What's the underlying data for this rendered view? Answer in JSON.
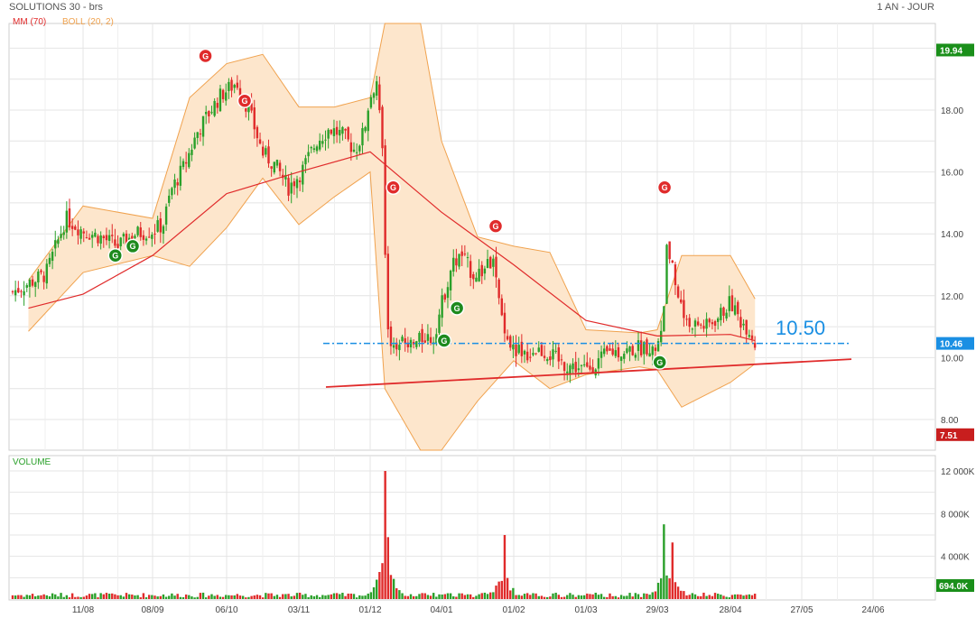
{
  "header": {
    "title": "SOLUTIONS 30 - brs",
    "period": "1 AN - JOUR",
    "ma_legend": "MM (70)",
    "boll_legend": "BOLL (20, 2)",
    "volume_label": "VOLUME",
    "annotation": "10.50"
  },
  "colors": {
    "up": "#2aa02a",
    "down": "#e02b2b",
    "ma": "#e02b2b",
    "boll_fill": "#fde6cc",
    "boll_line": "#f0a24e",
    "support_line": "#1a8fe3",
    "trend_line": "#e02b2b",
    "grid": "#e4e4e4"
  },
  "chart_data": [
    {
      "type": "candlestick",
      "title": "SOLUTIONS 30 - brs",
      "y_ticks": [
        "8.00",
        "10.00",
        "12.00",
        "14.00",
        "16.00",
        "18.00"
      ],
      "ylim": [
        6.7,
        20.7
      ],
      "x_ticks": [
        "11/08",
        "08/09",
        "06/10",
        "03/11",
        "01/12",
        "04/01",
        "01/02",
        "01/03",
        "29/03",
        "28/04",
        "27/05",
        "24/06"
      ],
      "price_badges": [
        {
          "label": "19.94",
          "value": 19.94,
          "color": "#1a8f1a"
        },
        {
          "label": "10.46",
          "value": 10.46,
          "color": "#1a8fe3"
        },
        {
          "label": "7.51",
          "value": 7.51,
          "color": "#c81e1e"
        }
      ],
      "horizontal_level": {
        "value": 10.46,
        "label": "10.50"
      },
      "trend_line": {
        "from": [
          "01/12",
          9.05
        ],
        "to": [
          "24/06",
          9.95
        ]
      },
      "signals": [
        {
          "date": "28/09",
          "value": 19.75,
          "kind": "sell",
          "label": "G"
        },
        {
          "date": "13/10",
          "value": 18.3,
          "kind": "sell",
          "label": "G"
        },
        {
          "date": "12/12",
          "value": 15.5,
          "kind": "sell",
          "label": "G"
        },
        {
          "date": "25/01",
          "value": 14.25,
          "kind": "sell",
          "label": "G"
        },
        {
          "date": "01/04",
          "value": 15.5,
          "kind": "sell",
          "label": "G"
        },
        {
          "date": "24/08",
          "value": 13.3,
          "kind": "buy",
          "label": "G"
        },
        {
          "date": "31/08",
          "value": 13.6,
          "kind": "buy",
          "label": "G"
        },
        {
          "date": "10/01",
          "value": 11.6,
          "kind": "buy",
          "label": "G"
        },
        {
          "date": "05/01",
          "value": 10.55,
          "kind": "buy",
          "label": "G"
        },
        {
          "date": "30/03",
          "value": 9.85,
          "kind": "buy",
          "label": "G"
        }
      ],
      "ma_points": [
        [
          "20/07",
          11.6
        ],
        [
          "11/08",
          12.05
        ],
        [
          "08/09",
          13.3
        ],
        [
          "06/10",
          15.3
        ],
        [
          "03/11",
          16.0
        ],
        [
          "01/12",
          16.65
        ],
        [
          "04/01",
          14.7
        ],
        [
          "01/02",
          13.0
        ],
        [
          "01/03",
          11.2
        ],
        [
          "29/03",
          10.7
        ],
        [
          "28/04",
          10.75
        ],
        [
          "08/05",
          10.55
        ]
      ],
      "boll_upper": [
        [
          "20/07",
          12.5
        ],
        [
          "11/08",
          14.9
        ],
        [
          "08/09",
          14.5
        ],
        [
          "22/09",
          18.4
        ],
        [
          "06/10",
          19.5
        ],
        [
          "20/10",
          19.8
        ],
        [
          "03/11",
          18.1
        ],
        [
          "17/11",
          18.1
        ],
        [
          "01/12",
          18.4
        ],
        [
          "08/12",
          21.0
        ],
        [
          "25/12",
          21.5
        ],
        [
          "04/01",
          17.0
        ],
        [
          "18/01",
          13.9
        ],
        [
          "01/02",
          13.6
        ],
        [
          "15/02",
          13.4
        ],
        [
          "01/03",
          10.9
        ],
        [
          "22/03",
          10.8
        ],
        [
          "29/03",
          10.9
        ],
        [
          "08/04",
          13.3
        ],
        [
          "28/04",
          13.3
        ],
        [
          "08/05",
          11.9
        ]
      ],
      "boll_lower": [
        [
          "20/07",
          10.85
        ],
        [
          "11/08",
          12.75
        ],
        [
          "08/09",
          13.3
        ],
        [
          "22/09",
          12.95
        ],
        [
          "06/10",
          14.2
        ],
        [
          "20/10",
          15.8
        ],
        [
          "03/11",
          14.3
        ],
        [
          "17/11",
          15.2
        ],
        [
          "01/12",
          16.0
        ],
        [
          "08/12",
          9.0
        ],
        [
          "25/12",
          6.7
        ],
        [
          "04/01",
          6.0
        ],
        [
          "18/01",
          8.6
        ],
        [
          "01/02",
          9.9
        ],
        [
          "15/02",
          9.0
        ],
        [
          "01/03",
          9.45
        ],
        [
          "22/03",
          9.7
        ],
        [
          "29/03",
          9.6
        ],
        [
          "08/04",
          8.4
        ],
        [
          "28/04",
          9.2
        ],
        [
          "08/05",
          9.8
        ]
      ],
      "candles_summary": {
        "last_close": 10.46,
        "high_52w": 19.94,
        "low_52w": 7.51
      }
    },
    {
      "type": "bar",
      "title": "VOLUME",
      "y_ticks": [
        "4 000K",
        "8 000K",
        "12 000K"
      ],
      "ylim": [
        0,
        12000
      ],
      "last_volume_label": "694.0K",
      "peaks_k": [
        {
          "date": "08/12",
          "value": 12000
        },
        {
          "date": "10/12",
          "value": 5800
        },
        {
          "date": "28/01",
          "value": 6000
        },
        {
          "date": "01/04",
          "value": 7000
        },
        {
          "date": "04/04",
          "value": 5300
        }
      ]
    }
  ]
}
